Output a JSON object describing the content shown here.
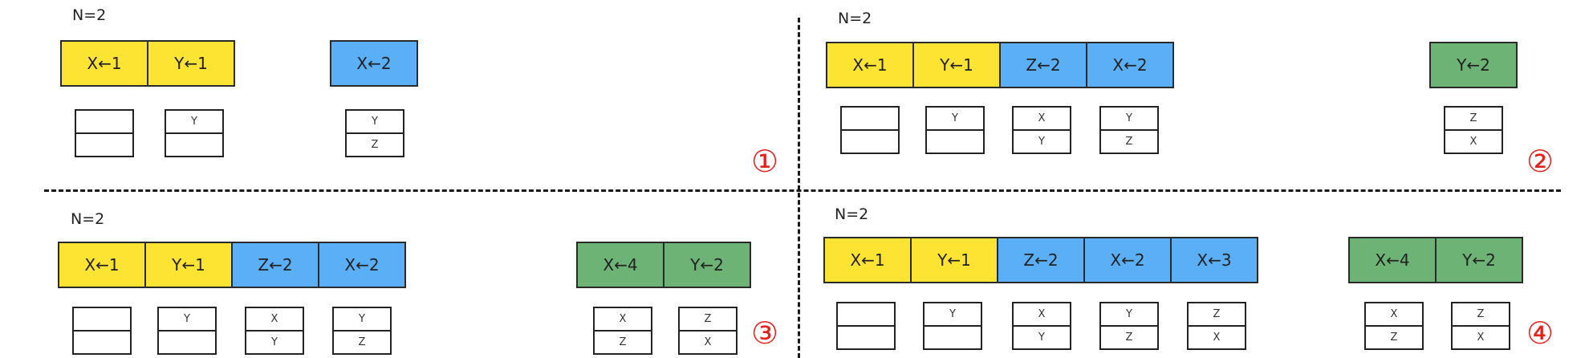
{
  "panels": [
    {
      "n_label": "N=2",
      "marker": "①",
      "groups": [
        {
          "ops": [
            {
              "label": "X←1",
              "color": "#fde433"
            },
            {
              "label": "Y←1",
              "color": "#fde433"
            }
          ]
        },
        {
          "ops": [
            {
              "label": "X←2",
              "color": "#5aaff7"
            }
          ]
        }
      ],
      "caches": [
        {
          "top": "",
          "bottom": ""
        },
        {
          "top": "Y",
          "bottom": ""
        },
        {
          "top": "Y",
          "bottom": "Z"
        }
      ]
    },
    {
      "n_label": "N=2",
      "marker": "②",
      "groups": [
        {
          "ops": [
            {
              "label": "X←1",
              "color": "#fde433"
            },
            {
              "label": "Y←1",
              "color": "#fde433"
            },
            {
              "label": "Z←2",
              "color": "#5aaff7"
            },
            {
              "label": "X←2",
              "color": "#5aaff7"
            }
          ]
        },
        {
          "ops": [
            {
              "label": "Y←2",
              "color": "#6db375"
            }
          ]
        }
      ],
      "caches": [
        {
          "top": "",
          "bottom": ""
        },
        {
          "top": "Y",
          "bottom": ""
        },
        {
          "top": "X",
          "bottom": "Y"
        },
        {
          "top": "Y",
          "bottom": "Z"
        },
        {
          "top": "Z",
          "bottom": "X"
        }
      ]
    },
    {
      "n_label": "N=2",
      "marker": "③",
      "groups": [
        {
          "ops": [
            {
              "label": "X←1",
              "color": "#fde433"
            },
            {
              "label": "Y←1",
              "color": "#fde433"
            },
            {
              "label": "Z←2",
              "color": "#5aaff7"
            },
            {
              "label": "X←2",
              "color": "#5aaff7"
            }
          ]
        },
        {
          "ops": [
            {
              "label": "X←4",
              "color": "#6db375"
            },
            {
              "label": "Y←2",
              "color": "#6db375"
            }
          ]
        }
      ],
      "caches": [
        {
          "top": "",
          "bottom": ""
        },
        {
          "top": "Y",
          "bottom": ""
        },
        {
          "top": "X",
          "bottom": "Y"
        },
        {
          "top": "Y",
          "bottom": "Z"
        },
        {
          "top": "X",
          "bottom": "Z"
        },
        {
          "top": "Z",
          "bottom": "X"
        }
      ]
    },
    {
      "n_label": "N=2",
      "marker": "④",
      "groups": [
        {
          "ops": [
            {
              "label": "X←1",
              "color": "#fde433"
            },
            {
              "label": "Y←1",
              "color": "#fde433"
            },
            {
              "label": "Z←2",
              "color": "#5aaff7"
            },
            {
              "label": "X←2",
              "color": "#5aaff7"
            },
            {
              "label": "X←3",
              "color": "#5aaff7"
            }
          ]
        },
        {
          "ops": [
            {
              "label": "X←4",
              "color": "#6db375"
            },
            {
              "label": "Y←2",
              "color": "#6db375"
            }
          ]
        }
      ],
      "caches": [
        {
          "top": "",
          "bottom": ""
        },
        {
          "top": "Y",
          "bottom": ""
        },
        {
          "top": "X",
          "bottom": "Y"
        },
        {
          "top": "Y",
          "bottom": "Z"
        },
        {
          "top": "Z",
          "bottom": "X"
        },
        {
          "top": "X",
          "bottom": "Z"
        },
        {
          "top": "Z",
          "bottom": "X"
        }
      ]
    }
  ]
}
